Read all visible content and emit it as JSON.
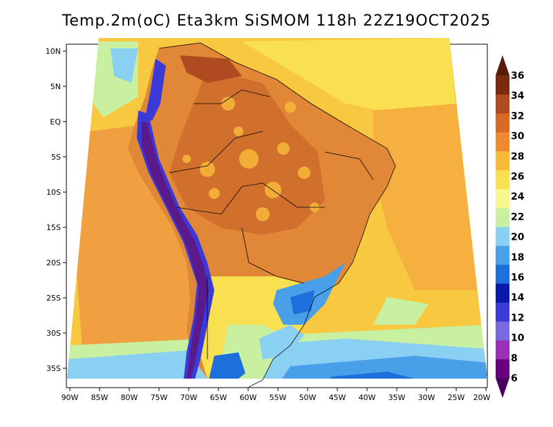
{
  "title": "Temp.2m(oC) Eta3km SiSMOM 118h 22Z19OCT2025",
  "lat_labels": [
    "10N",
    "5N",
    "EQ",
    "5S",
    "10S",
    "15S",
    "20S",
    "25S",
    "30S",
    "35S"
  ],
  "lon_labels": [
    "90W",
    "85W",
    "80W",
    "75W",
    "70W",
    "65W",
    "60W",
    "55W",
    "50W",
    "45W",
    "40W",
    "35W",
    "30W",
    "25W",
    "20W"
  ],
  "colorbar": {
    "labels": [
      "6",
      "8",
      "10",
      "12",
      "14",
      "16",
      "18",
      "20",
      "22",
      "24",
      "26",
      "28",
      "30",
      "32",
      "34",
      "36"
    ],
    "colors": [
      "#6a0080",
      "#9b2fb5",
      "#7a6ae0",
      "#3a3ad8",
      "#0a1aa8",
      "#1e6fdc",
      "#4aa0e8",
      "#8ad0f2",
      "#c8f0a0",
      "#f8f890",
      "#f8e050",
      "#f8b838",
      "#f08a30",
      "#d86a28",
      "#b04a20",
      "#7a2a10"
    ],
    "min_color": "#4a0060",
    "max_color": "#5a1a0a"
  },
  "colors": {
    "ocean_warm": "#f8c840",
    "ocean_hot": "#f0a040",
    "land_hot": "#e08838",
    "land_very_hot": "#c8682a",
    "andes_cold": "#3a3ad8",
    "andes_very_cold": "#5a1a8a",
    "southern_cool": "#8ad0f2",
    "southern_cold": "#1e6fdc"
  }
}
